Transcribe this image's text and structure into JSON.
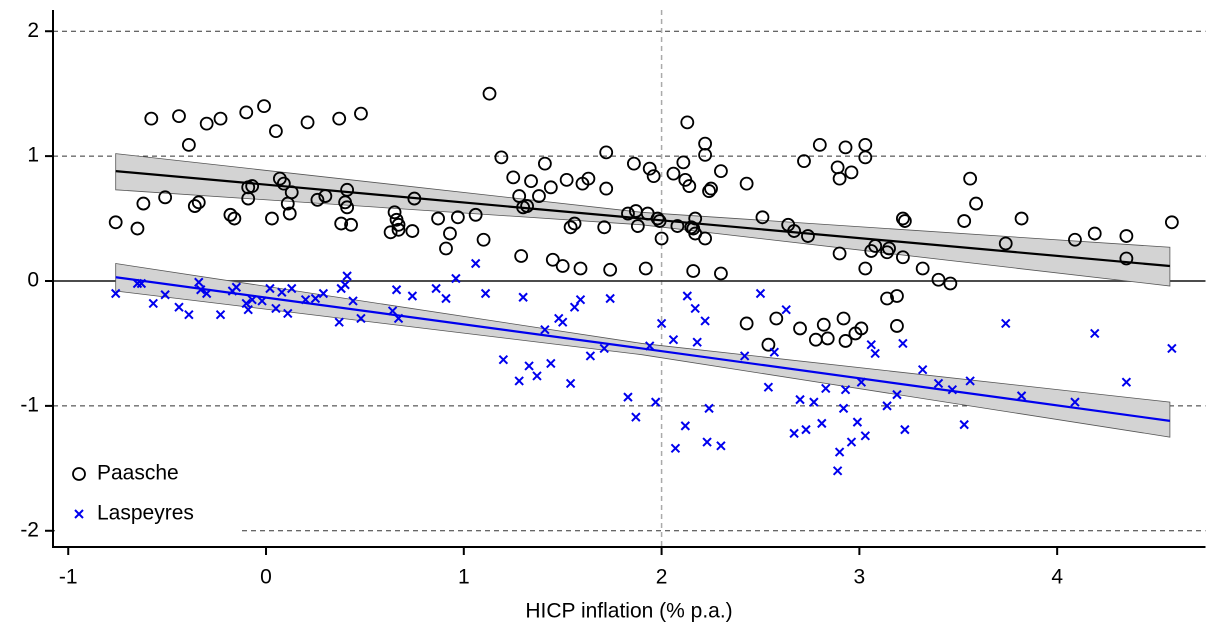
{
  "chart_data": {
    "type": "scatter",
    "x_label": "HICP inflation (% p.a.)",
    "xlim": [
      -1.077,
      4.75
    ],
    "ylim": [
      -2.13,
      2.17
    ],
    "xticks": [
      -1,
      0,
      1,
      2,
      3,
      4
    ],
    "yticks": [
      -2,
      -1,
      0,
      1,
      2
    ],
    "grid": true,
    "hline": 0,
    "vline": 2,
    "legend": "lower left",
    "series": [
      {
        "name": "Paasche",
        "color": "#000000",
        "marker": "circle",
        "x": [
          -0.76,
          -0.65,
          -0.62,
          -0.58,
          -0.51,
          -0.44,
          -0.39,
          -0.36,
          -0.34,
          -0.3,
          -0.23,
          -0.18,
          -0.16,
          -0.1,
          -0.09,
          -0.07,
          -0.09,
          -0.01,
          0.03,
          0.05,
          0.07,
          0.09,
          0.11,
          0.12,
          0.13,
          0.21,
          0.26,
          0.3,
          0.37,
          0.38,
          0.4,
          0.41,
          0.41,
          0.43,
          0.48,
          0.63,
          0.65,
          0.66,
          0.67,
          0.67,
          0.74,
          0.75,
          0.87,
          0.91,
          0.93,
          0.97,
          1.06,
          1.1,
          1.13,
          1.19,
          1.25,
          1.28,
          1.29,
          1.3,
          1.32,
          1.34,
          1.38,
          1.41,
          1.44,
          1.45,
          1.5,
          1.52,
          1.54,
          1.56,
          1.59,
          1.6,
          1.63,
          1.71,
          1.72,
          1.72,
          1.74,
          1.83,
          1.86,
          1.87,
          1.88,
          1.92,
          1.93,
          1.94,
          1.96,
          1.98,
          1.99,
          2.0,
          2.06,
          2.08,
          2.11,
          2.12,
          2.13,
          2.14,
          2.15,
          2.16,
          2.17,
          2.17,
          2.16,
          2.22,
          2.22,
          2.22,
          2.24,
          2.25,
          2.3,
          2.3,
          2.43,
          2.43,
          2.51,
          2.54,
          2.58,
          2.64,
          2.67,
          2.7,
          2.72,
          2.74,
          2.78,
          2.8,
          2.82,
          2.84,
          2.89,
          2.9,
          2.9,
          2.92,
          2.93,
          2.93,
          2.96,
          2.98,
          3.01,
          3.03,
          3.03,
          3.03,
          3.06,
          3.08,
          3.14,
          3.15,
          3.14,
          3.19,
          3.19,
          3.22,
          3.22,
          3.23,
          3.32,
          3.4,
          3.46,
          3.53,
          3.56,
          3.59,
          3.74,
          3.82,
          4.09,
          4.19,
          4.35,
          4.35,
          4.58
        ],
        "values": [
          0.47,
          0.42,
          0.62,
          1.3,
          0.67,
          1.32,
          1.09,
          0.6,
          0.63,
          1.26,
          1.3,
          0.53,
          0.5,
          1.35,
          0.75,
          0.76,
          0.66,
          1.4,
          0.5,
          1.2,
          0.82,
          0.78,
          0.62,
          0.54,
          0.71,
          1.27,
          0.65,
          0.68,
          1.3,
          0.46,
          0.63,
          0.73,
          0.59,
          0.45,
          1.34,
          0.39,
          0.55,
          0.49,
          0.41,
          0.45,
          0.4,
          0.66,
          0.5,
          0.26,
          0.38,
          0.51,
          0.53,
          0.33,
          1.5,
          0.99,
          0.83,
          0.68,
          0.2,
          0.59,
          0.6,
          0.8,
          0.68,
          0.94,
          0.75,
          0.17,
          0.12,
          0.81,
          0.43,
          0.46,
          0.1,
          0.78,
          0.82,
          0.43,
          0.74,
          1.03,
          0.09,
          0.54,
          0.94,
          0.56,
          0.44,
          0.1,
          0.54,
          0.9,
          0.84,
          0.5,
          0.48,
          0.34,
          0.86,
          0.44,
          0.95,
          0.81,
          1.27,
          0.76,
          0.43,
          0.42,
          0.5,
          0.38,
          0.08,
          1.1,
          1.01,
          0.34,
          0.72,
          0.74,
          0.88,
          0.06,
          0.78,
          -0.34,
          0.51,
          -0.51,
          -0.3,
          0.45,
          0.4,
          -0.38,
          0.96,
          0.36,
          -0.47,
          1.09,
          -0.35,
          -0.46,
          0.91,
          0.82,
          0.22,
          -0.3,
          1.07,
          -0.48,
          0.87,
          -0.42,
          -0.38,
          1.09,
          0.99,
          0.1,
          0.24,
          0.28,
          0.23,
          0.26,
          -0.14,
          -0.36,
          -0.12,
          0.19,
          0.5,
          0.48,
          0.1,
          0.01,
          -0.02,
          0.48,
          0.82,
          0.62,
          0.3,
          0.5,
          0.33,
          0.38,
          0.36,
          0.18,
          0.47
        ]
      },
      {
        "name": "Laspeyres",
        "color": "#0000ee",
        "marker": "x",
        "x": [
          -0.76,
          -0.65,
          -0.63,
          -0.57,
          -0.51,
          -0.44,
          -0.39,
          -0.34,
          -0.33,
          -0.3,
          -0.23,
          -0.17,
          -0.15,
          -0.1,
          -0.09,
          -0.07,
          -0.02,
          0.02,
          0.05,
          0.08,
          0.11,
          0.13,
          0.2,
          0.25,
          0.29,
          0.37,
          0.38,
          0.4,
          0.41,
          0.44,
          0.48,
          0.64,
          0.66,
          0.67,
          0.74,
          0.86,
          0.91,
          0.96,
          1.06,
          1.11,
          1.2,
          1.28,
          1.3,
          1.33,
          1.37,
          1.41,
          1.44,
          1.48,
          1.5,
          1.54,
          1.56,
          1.59,
          1.64,
          1.71,
          1.74,
          1.83,
          1.87,
          1.94,
          1.97,
          2.0,
          2.06,
          2.07,
          2.12,
          2.13,
          2.17,
          2.18,
          2.22,
          2.23,
          2.24,
          2.3,
          2.42,
          2.5,
          2.54,
          2.57,
          2.63,
          2.67,
          2.7,
          2.73,
          2.77,
          2.81,
          2.83,
          2.89,
          2.9,
          2.92,
          2.93,
          2.96,
          2.99,
          3.01,
          3.03,
          3.06,
          3.08,
          3.14,
          3.19,
          3.22,
          3.23,
          3.32,
          3.4,
          3.47,
          3.53,
          3.56,
          3.74,
          3.82,
          4.09,
          4.19,
          4.35,
          4.58
        ],
        "values": [
          -0.1,
          -0.02,
          -0.02,
          -0.18,
          -0.11,
          -0.21,
          -0.27,
          -0.01,
          -0.07,
          -0.1,
          -0.27,
          -0.08,
          -0.05,
          -0.18,
          -0.23,
          -0.15,
          -0.16,
          -0.06,
          -0.22,
          -0.09,
          -0.26,
          -0.06,
          -0.15,
          -0.14,
          -0.1,
          -0.33,
          -0.06,
          -0.03,
          0.04,
          -0.16,
          -0.3,
          -0.24,
          -0.07,
          -0.3,
          -0.12,
          -0.06,
          -0.14,
          0.02,
          0.14,
          -0.1,
          -0.63,
          -0.8,
          -0.13,
          -0.68,
          -0.76,
          -0.39,
          -0.66,
          -0.3,
          -0.33,
          -0.82,
          -0.21,
          -0.15,
          -0.6,
          -0.54,
          -0.14,
          -0.93,
          -1.09,
          -0.52,
          -0.97,
          -0.34,
          -0.47,
          -1.34,
          -1.16,
          -0.12,
          -0.22,
          -0.49,
          -0.32,
          -1.29,
          -1.02,
          -1.32,
          -0.6,
          -0.1,
          -0.85,
          -0.57,
          -0.23,
          -1.22,
          -0.95,
          -1.19,
          -0.97,
          -1.14,
          -0.86,
          -1.52,
          -1.37,
          -1.02,
          -0.87,
          -1.29,
          -1.13,
          -0.81,
          -1.24,
          -0.51,
          -0.58,
          -1.0,
          -0.91,
          -0.5,
          -1.19,
          -0.71,
          -0.82,
          -0.87,
          -1.15,
          -0.8,
          -0.34,
          -0.92,
          -0.97,
          -0.42,
          -0.81,
          -0.54
        ]
      }
    ],
    "fits": [
      {
        "color": "#000000",
        "band_color": "#d3d3d3",
        "x": [
          -0.76,
          1.9,
          4.57
        ],
        "y": [
          0.88,
          0.5,
          0.12
        ],
        "lower": [
          0.73,
          0.45,
          -0.04
        ],
        "upper": [
          1.02,
          0.55,
          0.27
        ]
      },
      {
        "color": "#0000ee",
        "band_color": "#d3d3d3",
        "x": [
          -0.76,
          1.9,
          4.57
        ],
        "y": [
          0.03,
          -0.54,
          -1.12
        ],
        "lower": [
          -0.08,
          -0.59,
          -1.25
        ],
        "upper": [
          0.14,
          -0.5,
          -0.97
        ]
      }
    ]
  }
}
